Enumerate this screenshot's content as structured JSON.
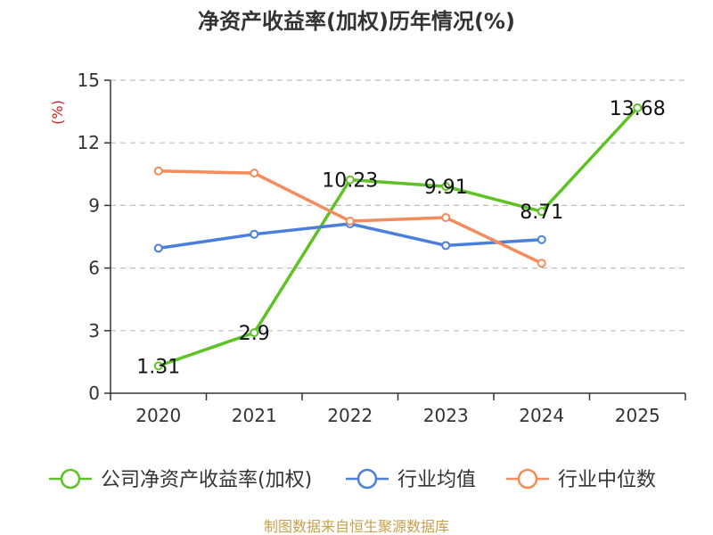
{
  "chart_data": {
    "type": "line",
    "title": "净资产收益率(加权)历年情况(%)",
    "ylabel": "(%)",
    "xlabel": "",
    "categories": [
      "2020",
      "2021",
      "2022",
      "2023",
      "2024",
      "2025"
    ],
    "ylim": [
      0,
      15
    ],
    "yticks": [
      "0",
      "3",
      "6",
      "9",
      "12",
      "15"
    ],
    "grid": true,
    "legend_position": "bottom",
    "series": [
      {
        "name": "公司净资产收益率(加权)",
        "color": "#5dc324",
        "values": [
          1.31,
          2.9,
          10.23,
          9.91,
          8.71,
          13.68
        ],
        "labels": [
          "1.31",
          "2.9",
          "10.23",
          "9.91",
          "8.71",
          "13.68"
        ]
      },
      {
        "name": "行业均值",
        "color": "#4b7fdc",
        "values": [
          6.95,
          7.62,
          8.12,
          7.08,
          7.36,
          null
        ]
      },
      {
        "name": "行业中位数",
        "color": "#f58a5b",
        "values": [
          10.65,
          10.55,
          8.25,
          8.42,
          6.23,
          null
        ]
      }
    ]
  },
  "source": {
    "text": "制图数据来自恒生聚源数据库",
    "color": "#c8a04a"
  },
  "unit_color": "#d22020"
}
